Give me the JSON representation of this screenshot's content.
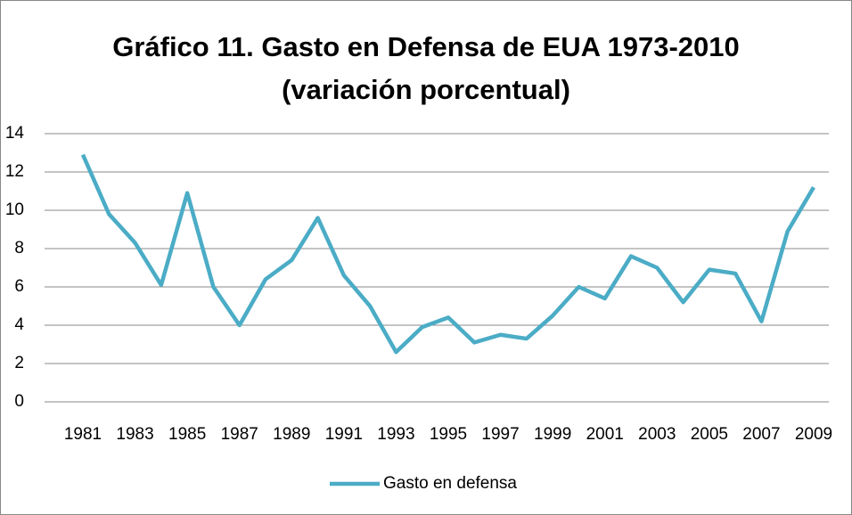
{
  "chart_data": {
    "type": "line",
    "title": "Gráfico 11. Gasto en Defensa de EUA 1973-2010",
    "subtitle": "(variación porcentual)",
    "categories": [
      "1981",
      null,
      "1983",
      null,
      "1985",
      null,
      "1987",
      null,
      "1989",
      null,
      "1991",
      null,
      "1993",
      null,
      "1995",
      null,
      "1997",
      null,
      "1999",
      null,
      "2001",
      null,
      "2003",
      null,
      "2005",
      null,
      "2007",
      null,
      "2009"
    ],
    "series": [
      {
        "name": "Gasto en defensa",
        "color": "#4bacc6",
        "values": [
          12.9,
          9.8,
          8.3,
          6.1,
          10.9,
          6.0,
          4.0,
          6.4,
          7.4,
          9.6,
          6.6,
          5.0,
          2.6,
          3.9,
          4.4,
          3.1,
          3.5,
          3.3,
          4.5,
          6.0,
          5.4,
          7.6,
          7.0,
          5.2,
          6.9,
          6.7,
          4.2,
          8.9,
          11.2
        ]
      }
    ],
    "ylim": [
      0,
      14
    ],
    "yticks": [
      0,
      2,
      4,
      6,
      8,
      10,
      12,
      14
    ],
    "grid": true,
    "legend": "bottom"
  }
}
